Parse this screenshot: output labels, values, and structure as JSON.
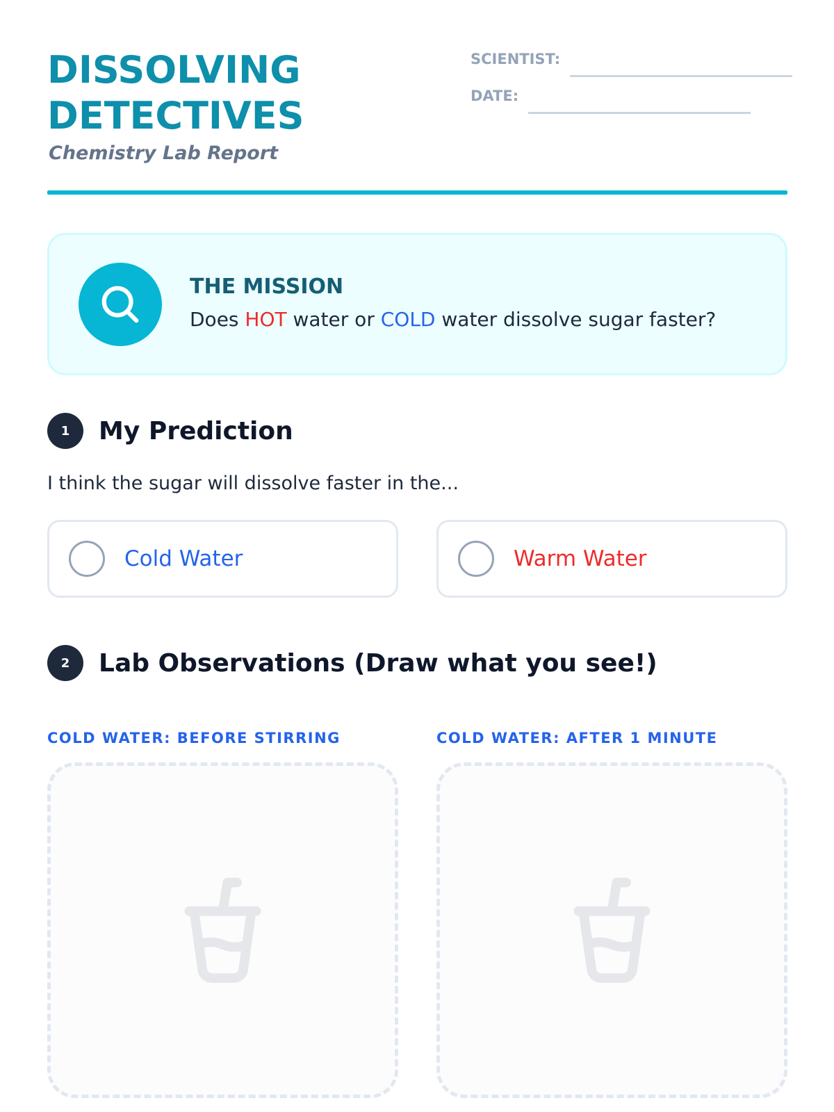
{
  "header": {
    "title_line1": "DISSOLVING",
    "title_line2": "DETECTIVES",
    "subtitle": "Chemistry Lab Report",
    "scientist_label": "SCIENTIST:",
    "date_label": "DATE:"
  },
  "mission": {
    "icon": "search-icon",
    "title": "THE MISSION",
    "text_before": "Does ",
    "hot": "HOT",
    "text_mid": " water or ",
    "cold": "COLD",
    "text_after": " water dissolve sugar faster?"
  },
  "prediction": {
    "number": "1",
    "heading": "My Prediction",
    "prompt": "I think the sugar will dissolve faster in the...",
    "options": [
      {
        "label": "Cold Water",
        "color": "#2563eb"
      },
      {
        "label": "Warm Water",
        "color": "#ef2b2b"
      }
    ]
  },
  "observations": {
    "number": "2",
    "heading": "Lab Observations (Draw what you see!)",
    "boxes": [
      {
        "label": "COLD WATER: BEFORE STIRRING",
        "icon": "cup-soda-icon"
      },
      {
        "label": "COLD WATER: AFTER 1 MINUTE",
        "icon": "cup-soda-icon"
      }
    ]
  },
  "colors": {
    "accent": "#06b6d4",
    "title": "#0e8fab",
    "hot": "#ef2b2b",
    "cold": "#2563eb"
  }
}
